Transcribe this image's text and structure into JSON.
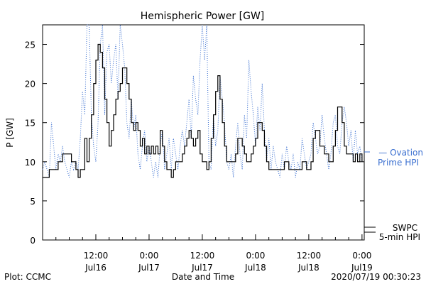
{
  "chart_data": {
    "type": "line",
    "title": "Hemispheric Power [GW]",
    "ylabel": "P [GW]",
    "xlabel": "Date and Time",
    "ylim": [
      0,
      27.5
    ],
    "y_ticks": [
      0,
      5,
      10,
      15,
      20,
      25
    ],
    "x_ticks": [
      {
        "time": "12:00",
        "date": "Jul16",
        "hours": 12
      },
      {
        "time": "0:00",
        "date": "Jul17",
        "hours": 24
      },
      {
        "time": "12:00",
        "date": "Jul17",
        "hours": 36
      },
      {
        "time": "0:00",
        "date": "Jul18",
        "hours": 48
      },
      {
        "time": "12:00",
        "date": "Jul18",
        "hours": 60
      },
      {
        "time": "0:00",
        "date": "Jul19",
        "hours": 72
      }
    ],
    "xlim_hours": [
      0,
      72.5
    ],
    "x_units": "hours since Jul16 0:00 (UT)",
    "grid": false,
    "series": [
      {
        "name": "Ovation Prime HPI",
        "legend_lines": [
          "— Ovation",
          "Prime HPI"
        ],
        "color": "#3a6fd0",
        "style": "dotted",
        "points": [
          [
            0.0,
            9
          ],
          [
            0.5,
            10
          ],
          [
            1.0,
            9
          ],
          [
            1.5,
            8
          ],
          [
            2.0,
            15
          ],
          [
            2.5,
            12
          ],
          [
            3.0,
            9
          ],
          [
            3.5,
            11
          ],
          [
            4.0,
            10
          ],
          [
            4.5,
            12
          ],
          [
            5.0,
            10
          ],
          [
            5.5,
            9
          ],
          [
            6.0,
            8
          ],
          [
            6.5,
            10
          ],
          [
            7.0,
            9
          ],
          [
            7.5,
            10
          ],
          [
            8.0,
            9
          ],
          [
            8.5,
            13
          ],
          [
            9.0,
            19
          ],
          [
            9.5,
            16
          ],
          [
            10.0,
            27.5
          ],
          [
            10.5,
            27.5
          ],
          [
            11.0,
            16
          ],
          [
            11.5,
            12
          ],
          [
            12.0,
            10
          ],
          [
            12.5,
            15
          ],
          [
            13.0,
            25
          ],
          [
            13.5,
            27.5
          ],
          [
            14.0,
            16
          ],
          [
            14.5,
            24
          ],
          [
            15.0,
            25
          ],
          [
            15.5,
            20
          ],
          [
            16.0,
            23
          ],
          [
            16.5,
            25
          ],
          [
            17.0,
            18
          ],
          [
            17.5,
            27.5
          ],
          [
            18.0,
            25
          ],
          [
            18.5,
            22
          ],
          [
            19.0,
            15
          ],
          [
            19.5,
            13
          ],
          [
            20.0,
            18
          ],
          [
            20.5,
            14
          ],
          [
            21.0,
            16
          ],
          [
            21.5,
            11
          ],
          [
            22.0,
            9
          ],
          [
            22.5,
            12
          ],
          [
            23.0,
            14
          ],
          [
            23.5,
            10
          ],
          [
            24.0,
            12
          ],
          [
            24.5,
            10
          ],
          [
            25.0,
            8
          ],
          [
            25.5,
            10
          ],
          [
            26.0,
            8
          ],
          [
            26.5,
            12
          ],
          [
            27.0,
            14
          ],
          [
            27.5,
            9
          ],
          [
            28.0,
            11
          ],
          [
            28.5,
            13
          ],
          [
            29.0,
            9
          ],
          [
            29.5,
            13
          ],
          [
            30.0,
            11
          ],
          [
            30.5,
            9
          ],
          [
            31.0,
            12
          ],
          [
            31.5,
            14
          ],
          [
            32.0,
            12
          ],
          [
            32.5,
            15
          ],
          [
            33.0,
            18
          ],
          [
            33.5,
            13
          ],
          [
            34.0,
            21
          ],
          [
            34.5,
            18
          ],
          [
            35.0,
            16
          ],
          [
            35.5,
            23
          ],
          [
            36.0,
            27.5
          ],
          [
            36.5,
            23
          ],
          [
            37.0,
            27.5
          ],
          [
            37.5,
            10
          ],
          [
            38.0,
            9
          ],
          [
            38.5,
            16
          ],
          [
            39.0,
            12
          ],
          [
            39.5,
            14
          ],
          [
            40.0,
            21
          ],
          [
            40.5,
            18
          ],
          [
            41.0,
            15
          ],
          [
            41.5,
            10
          ],
          [
            42.0,
            9
          ],
          [
            42.5,
            11
          ],
          [
            43.0,
            8
          ],
          [
            43.5,
            12
          ],
          [
            44.0,
            15
          ],
          [
            44.5,
            11
          ],
          [
            45.0,
            9
          ],
          [
            45.5,
            16
          ],
          [
            46.0,
            13
          ],
          [
            46.5,
            23
          ],
          [
            47.0,
            19
          ],
          [
            47.5,
            16
          ],
          [
            48.0,
            12
          ],
          [
            48.5,
            17
          ],
          [
            49.0,
            14
          ],
          [
            49.5,
            20
          ],
          [
            50.0,
            14
          ],
          [
            50.5,
            10
          ],
          [
            51.0,
            13
          ],
          [
            51.5,
            9
          ],
          [
            52.0,
            12
          ],
          [
            52.5,
            10
          ],
          [
            53.0,
            9
          ],
          [
            53.5,
            8
          ],
          [
            54.0,
            11
          ],
          [
            54.5,
            9
          ],
          [
            55.0,
            12
          ],
          [
            55.5,
            10
          ],
          [
            56.0,
            9
          ],
          [
            56.5,
            11
          ],
          [
            57.0,
            8
          ],
          [
            57.5,
            10
          ],
          [
            58.0,
            9
          ],
          [
            58.5,
            13
          ],
          [
            59.0,
            11
          ],
          [
            59.5,
            9
          ],
          [
            60.0,
            10
          ],
          [
            60.5,
            11
          ],
          [
            61.0,
            15
          ],
          [
            61.5,
            13
          ],
          [
            62.0,
            11
          ],
          [
            62.5,
            12
          ],
          [
            63.0,
            16
          ],
          [
            63.5,
            13
          ],
          [
            64.0,
            11
          ],
          [
            64.5,
            9
          ],
          [
            65.0,
            11
          ],
          [
            65.5,
            15
          ],
          [
            66.0,
            16
          ],
          [
            66.5,
            12
          ],
          [
            67.0,
            11
          ],
          [
            67.5,
            15
          ],
          [
            68.0,
            17
          ],
          [
            68.5,
            15
          ],
          [
            69.0,
            12
          ],
          [
            69.5,
            14
          ],
          [
            70.0,
            10
          ],
          [
            70.5,
            14
          ],
          [
            71.0,
            11
          ],
          [
            71.5,
            12
          ],
          [
            72.0,
            10
          ]
        ]
      },
      {
        "name": "SWPC 5-min HPI",
        "legend_lines": [
          "SWPC",
          "5-min HPI"
        ],
        "color": "#000000",
        "style": "solid",
        "points": [
          [
            0.0,
            8
          ],
          [
            1.0,
            8
          ],
          [
            1.5,
            9
          ],
          [
            3.0,
            9
          ],
          [
            3.5,
            10
          ],
          [
            4.0,
            10
          ],
          [
            4.5,
            11
          ],
          [
            6.0,
            11
          ],
          [
            6.5,
            10
          ],
          [
            7.0,
            10
          ],
          [
            7.5,
            9
          ],
          [
            8.0,
            8
          ],
          [
            8.5,
            9
          ],
          [
            9.0,
            9
          ],
          [
            9.5,
            13
          ],
          [
            10.0,
            10
          ],
          [
            10.5,
            13
          ],
          [
            11.0,
            16
          ],
          [
            11.5,
            20
          ],
          [
            12.0,
            23
          ],
          [
            12.5,
            25
          ],
          [
            13.0,
            24
          ],
          [
            13.5,
            22
          ],
          [
            14.0,
            18
          ],
          [
            14.5,
            15
          ],
          [
            15.0,
            12
          ],
          [
            15.5,
            14
          ],
          [
            16.0,
            16
          ],
          [
            16.5,
            18
          ],
          [
            17.0,
            19
          ],
          [
            17.5,
            20
          ],
          [
            18.0,
            22
          ],
          [
            18.5,
            22
          ],
          [
            19.0,
            20
          ],
          [
            19.5,
            18
          ],
          [
            20.0,
            15
          ],
          [
            20.5,
            14
          ],
          [
            21.0,
            15
          ],
          [
            21.5,
            14
          ],
          [
            22.0,
            12
          ],
          [
            22.5,
            13
          ],
          [
            23.0,
            11
          ],
          [
            23.5,
            12
          ],
          [
            24.0,
            11
          ],
          [
            24.5,
            12
          ],
          [
            25.0,
            11
          ],
          [
            25.5,
            12
          ],
          [
            26.0,
            11
          ],
          [
            26.5,
            14
          ],
          [
            27.0,
            12
          ],
          [
            27.5,
            10
          ],
          [
            28.0,
            9
          ],
          [
            29.0,
            8
          ],
          [
            29.5,
            9
          ],
          [
            30.0,
            10
          ],
          [
            31.0,
            10
          ],
          [
            31.5,
            11
          ],
          [
            32.0,
            12
          ],
          [
            32.5,
            13
          ],
          [
            33.0,
            14
          ],
          [
            33.5,
            13
          ],
          [
            34.0,
            12
          ],
          [
            34.5,
            13
          ],
          [
            35.0,
            14
          ],
          [
            35.5,
            11
          ],
          [
            36.0,
            10
          ],
          [
            36.5,
            10
          ],
          [
            37.0,
            9
          ],
          [
            37.5,
            10
          ],
          [
            38.0,
            13
          ],
          [
            38.5,
            16
          ],
          [
            39.0,
            19
          ],
          [
            39.5,
            21
          ],
          [
            40.0,
            18
          ],
          [
            40.5,
            15
          ],
          [
            41.0,
            12
          ],
          [
            41.5,
            10
          ],
          [
            42.0,
            10
          ],
          [
            42.5,
            10
          ],
          [
            43.0,
            10
          ],
          [
            43.5,
            11
          ],
          [
            44.0,
            13
          ],
          [
            44.5,
            13
          ],
          [
            45.0,
            12
          ],
          [
            45.5,
            11
          ],
          [
            46.0,
            10
          ],
          [
            46.5,
            10
          ],
          [
            47.0,
            11
          ],
          [
            47.5,
            12
          ],
          [
            48.0,
            13
          ],
          [
            48.5,
            15
          ],
          [
            49.0,
            15
          ],
          [
            49.5,
            14
          ],
          [
            50.0,
            12
          ],
          [
            50.5,
            10
          ],
          [
            51.0,
            9
          ],
          [
            52.0,
            9
          ],
          [
            53.0,
            9
          ],
          [
            54.0,
            9
          ],
          [
            54.5,
            10
          ],
          [
            55.0,
            10
          ],
          [
            55.5,
            9
          ],
          [
            56.0,
            9
          ],
          [
            57.0,
            9
          ],
          [
            58.0,
            9
          ],
          [
            58.5,
            10
          ],
          [
            59.0,
            10
          ],
          [
            59.5,
            9
          ],
          [
            60.0,
            9
          ],
          [
            60.5,
            10
          ],
          [
            61.0,
            13
          ],
          [
            61.5,
            14
          ],
          [
            62.0,
            14
          ],
          [
            62.5,
            12
          ],
          [
            63.0,
            12
          ],
          [
            63.5,
            11
          ],
          [
            64.0,
            11
          ],
          [
            64.5,
            10
          ],
          [
            65.0,
            10
          ],
          [
            65.5,
            12
          ],
          [
            66.0,
            14
          ],
          [
            66.5,
            17
          ],
          [
            67.0,
            17
          ],
          [
            67.5,
            15
          ],
          [
            68.0,
            12
          ],
          [
            68.5,
            11
          ],
          [
            69.0,
            11
          ],
          [
            69.5,
            11
          ],
          [
            70.0,
            10
          ],
          [
            70.5,
            11
          ],
          [
            71.0,
            10
          ],
          [
            71.5,
            11
          ],
          [
            72.0,
            10
          ]
        ]
      }
    ]
  },
  "footer": {
    "plot_credit": "Plot: CCMC",
    "timestamp": "2020/07/19 00:30:23"
  }
}
